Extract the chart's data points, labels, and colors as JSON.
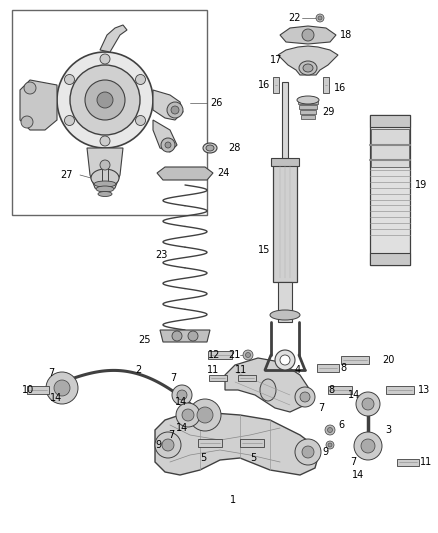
{
  "bg_color": "#ffffff",
  "fig_width": 4.38,
  "fig_height": 5.33,
  "dpi": 100,
  "line_color": "#404040",
  "gray_fill": "#d8d8d8",
  "dark_fill": "#888888"
}
